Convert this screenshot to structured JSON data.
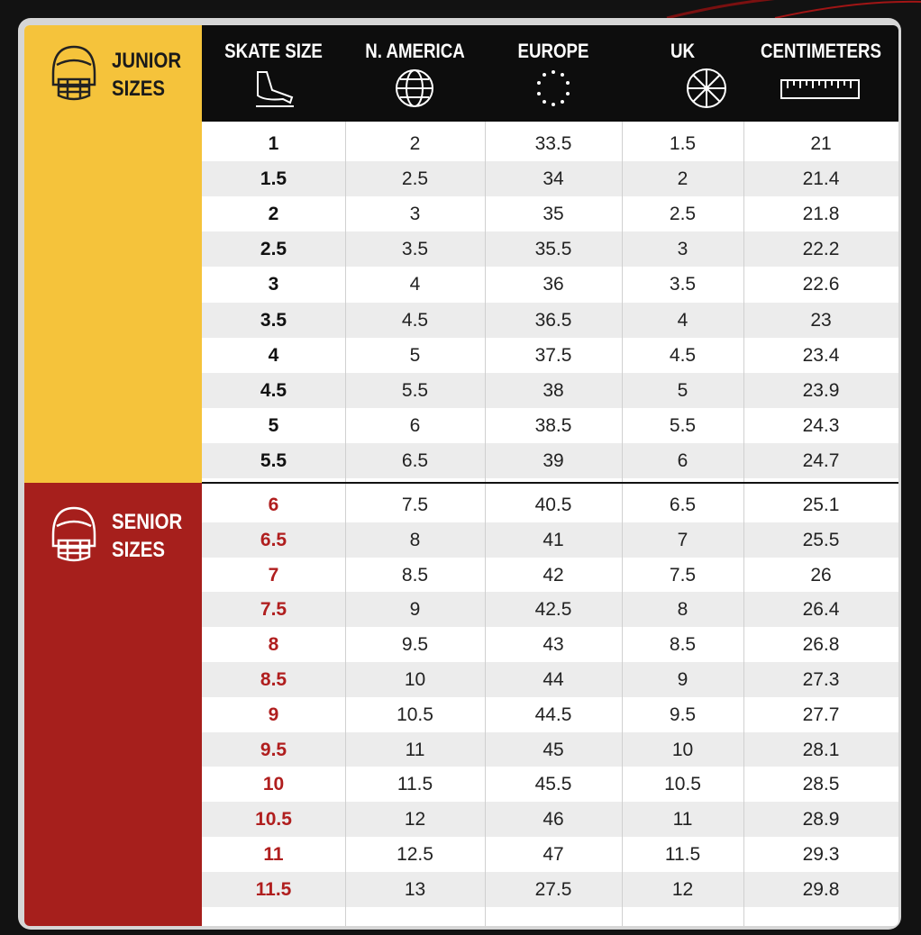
{
  "table": {
    "columns": [
      "SKATE SIZE",
      "N. AMERICA",
      "EUROPE",
      "UK",
      "CENTIMETERS"
    ],
    "groups": [
      {
        "label": "JUNIOR SIZES",
        "rows": [
          [
            1,
            2,
            33.5,
            1.5,
            21
          ],
          [
            1.5,
            2.5,
            34,
            2,
            21.4
          ],
          [
            2,
            3,
            35,
            2.5,
            21.8
          ],
          [
            2.5,
            3.5,
            35.5,
            3,
            22.2
          ],
          [
            3,
            4,
            36,
            3.5,
            22.6
          ],
          [
            3.5,
            4.5,
            36.5,
            4,
            23
          ],
          [
            4,
            5,
            37.5,
            4.5,
            23.4
          ],
          [
            4.5,
            5.5,
            38,
            5,
            23.9
          ],
          [
            5,
            6,
            38.5,
            5.5,
            24.3
          ],
          [
            5.5,
            6.5,
            39,
            6,
            24.7
          ]
        ]
      },
      {
        "label": "SENIOR SIZES",
        "rows": [
          [
            6,
            7.5,
            40.5,
            6.5,
            25.1
          ],
          [
            6.5,
            8,
            41,
            7,
            25.5
          ],
          [
            7,
            8.5,
            42,
            7.5,
            26
          ],
          [
            7.5,
            9,
            42.5,
            8,
            26.4
          ],
          [
            8,
            9.5,
            43,
            8.5,
            26.8
          ],
          [
            8.5,
            10,
            44,
            9,
            27.3
          ],
          [
            9,
            10.5,
            44.5,
            9.5,
            27.7
          ],
          [
            9.5,
            11,
            45,
            10,
            28.1
          ],
          [
            10,
            11.5,
            45.5,
            10.5,
            28.5
          ],
          [
            10.5,
            12,
            46,
            11,
            28.9
          ],
          [
            11,
            12.5,
            47,
            11.5,
            29.3
          ],
          [
            11.5,
            13,
            27.5,
            12,
            29.8
          ]
        ]
      }
    ]
  }
}
